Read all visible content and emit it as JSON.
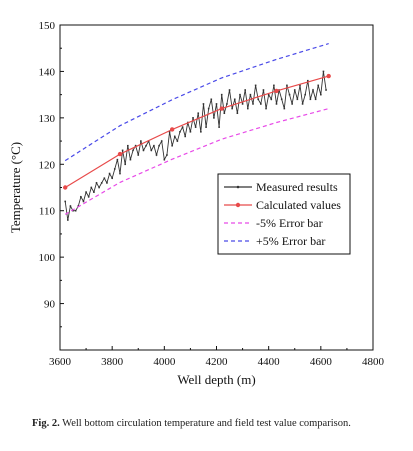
{
  "chart_data": {
    "type": "line",
    "title": "",
    "xlabel": "Well depth (m)",
    "ylabel": "Temperature (°C)",
    "xlim": [
      3600,
      4800
    ],
    "ylim": [
      80,
      150
    ],
    "xticks": [
      3600,
      3800,
      4000,
      4200,
      4400,
      4600,
      4800
    ],
    "yticks": [
      90,
      100,
      110,
      120,
      130,
      140,
      150
    ],
    "grid": false,
    "legend": "inside-right",
    "series": [
      {
        "name": "Measured results",
        "color": "#333333",
        "style": "line-with-small-markers",
        "x": [
          3620,
          3630,
          3640,
          3650,
          3660,
          3670,
          3680,
          3690,
          3700,
          3710,
          3720,
          3730,
          3740,
          3750,
          3760,
          3770,
          3780,
          3790,
          3800,
          3810,
          3820,
          3830,
          3840,
          3850,
          3860,
          3870,
          3880,
          3890,
          3900,
          3910,
          3920,
          3930,
          3940,
          3950,
          3960,
          3970,
          3980,
          3990,
          4000,
          4010,
          4020,
          4030,
          4040,
          4050,
          4060,
          4070,
          4080,
          4090,
          4100,
          4110,
          4120,
          4130,
          4140,
          4150,
          4160,
          4170,
          4180,
          4190,
          4200,
          4210,
          4220,
          4230,
          4240,
          4250,
          4260,
          4270,
          4280,
          4290,
          4300,
          4310,
          4320,
          4330,
          4340,
          4350,
          4360,
          4370,
          4380,
          4390,
          4400,
          4410,
          4420,
          4430,
          4440,
          4450,
          4460,
          4470,
          4480,
          4490,
          4500,
          4510,
          4520,
          4530,
          4540,
          4550,
          4560,
          4570,
          4580,
          4590,
          4600,
          4610,
          4620
        ],
        "y": [
          112,
          108,
          111,
          110,
          110,
          111,
          113,
          112,
          114,
          113,
          115,
          114,
          116,
          115,
          116,
          117,
          116,
          118,
          117,
          119,
          121,
          118,
          123,
          120,
          124,
          121,
          123,
          124,
          122,
          125,
          123,
          124,
          125,
          123,
          124,
          122,
          124,
          125,
          121,
          122,
          127,
          124,
          126,
          125,
          127,
          128,
          126,
          129,
          127,
          130,
          128,
          131,
          127,
          133,
          128,
          132,
          134,
          130,
          133,
          128,
          135,
          131,
          133,
          136,
          132,
          134,
          131,
          135,
          133,
          136,
          132,
          135,
          133,
          137,
          134,
          133,
          136,
          132,
          135,
          134,
          137,
          133,
          136,
          134,
          132,
          137,
          135,
          133,
          136,
          134,
          137,
          133,
          135,
          138,
          134,
          136,
          134,
          137,
          135,
          140,
          136
        ]
      },
      {
        "name": "Calculated values",
        "color": "#e84a4a",
        "style": "line-with-markers",
        "x": [
          3620,
          3830,
          4030,
          4220,
          4430,
          4630
        ],
        "y": [
          115,
          122.2,
          127.5,
          132,
          135.8,
          139
        ]
      },
      {
        "name": "-5% Error bar",
        "color": "#e84ae8",
        "style": "dashed",
        "x": [
          3620,
          3830,
          4030,
          4220,
          4430,
          4630
        ],
        "y": [
          109.2,
          116.1,
          121.1,
          125.4,
          129,
          132
        ]
      },
      {
        "name": "+5% Error bar",
        "color": "#4a4ae8",
        "style": "dashed",
        "x": [
          3620,
          3830,
          4030,
          4220,
          4430,
          4630
        ],
        "y": [
          120.8,
          128.3,
          133.9,
          138.6,
          142.6,
          146
        ]
      }
    ]
  },
  "caption": {
    "label": "Fig. 2.",
    "text": "Well bottom circulation temperature and field test value comparison."
  }
}
